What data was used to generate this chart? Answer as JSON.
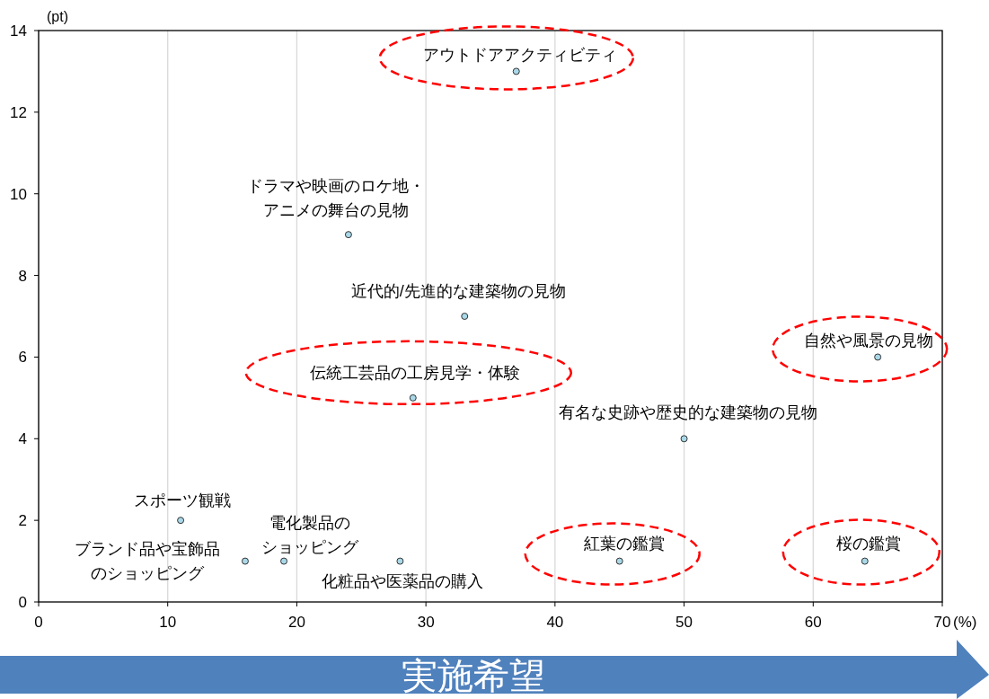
{
  "chart_data": {
    "type": "scatter",
    "ylabel": "(pt)",
    "xlabel": "(%)",
    "xlim": [
      0,
      70
    ],
    "ylim": [
      0,
      14
    ],
    "xticks": [
      0,
      10,
      20,
      30,
      40,
      50,
      60,
      70
    ],
    "yticks": [
      0,
      2,
      4,
      6,
      8,
      10,
      12,
      14
    ],
    "grid": "x",
    "marker": "circle",
    "series": [
      {
        "color": "#a9d8e8",
        "x": [
          37,
          24,
          33,
          29,
          65,
          50,
          11,
          16,
          19,
          28,
          45,
          64
        ],
        "values": [
          13,
          9,
          7,
          5,
          6,
          4,
          2,
          1,
          1,
          1,
          1,
          1
        ]
      }
    ],
    "annotations": [
      {
        "text": "アウトドアアクティビティ",
        "x": 37,
        "y": 13
      },
      {
        "text": "ドラマや映画のロケ地・アニメの舞台の見物",
        "x": 24,
        "y": 9
      },
      {
        "text": "近代的/先進的な建築物の見物",
        "x": 33,
        "y": 7
      },
      {
        "text": "伝統工芸品の工房見学・体験",
        "x": 29,
        "y": 5
      },
      {
        "text": "自然や風景の見物",
        "x": 65,
        "y": 6
      },
      {
        "text": "有名な史跡や歴史的な建築物の見物",
        "x": 50,
        "y": 4
      },
      {
        "text": "スポーツ観戦",
        "x": 11,
        "y": 2
      },
      {
        "text": "ブランド品や宝飾品のショッピング",
        "x": 16,
        "y": 1
      },
      {
        "text": "電化製品のショッピング",
        "x": 19,
        "y": 1
      },
      {
        "text": "化粧品や医薬品の購入",
        "x": 28,
        "y": 1
      },
      {
        "text": "紅葉の鑑賞",
        "x": 45,
        "y": 1
      },
      {
        "text": "桜の鑑賞",
        "x": 64,
        "y": 1
      },
      "実施希望"
    ]
  }
}
